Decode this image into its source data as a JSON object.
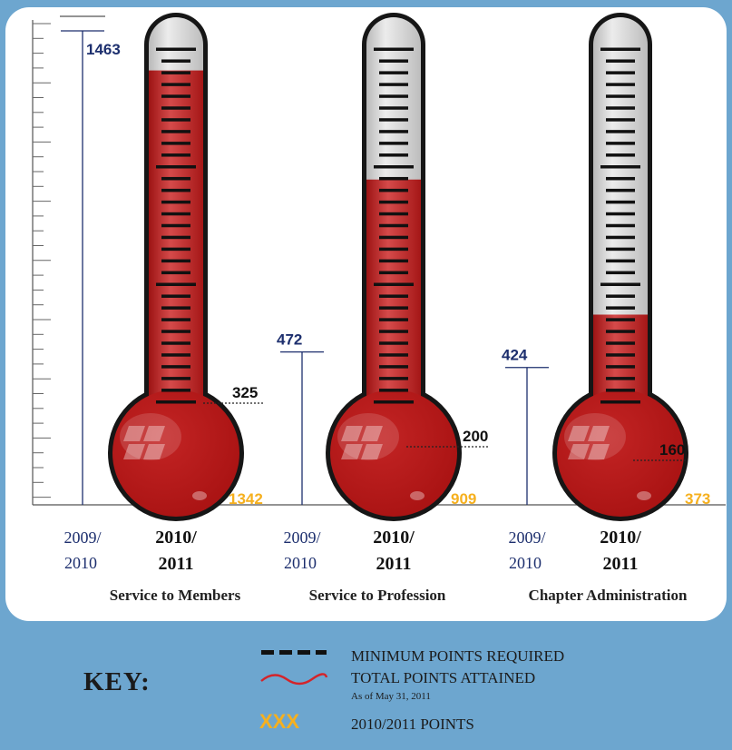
{
  "chart_data": {
    "type": "bar",
    "categories": [
      "Service to Members",
      "Service to Profession",
      "Chapter Administration"
    ],
    "series": [
      {
        "period": "2009/2010",
        "values": [
          1463,
          472,
          424
        ],
        "color": "#1d2f6e"
      },
      {
        "period": "2010/2011",
        "values": [
          1342,
          909,
          373
        ],
        "color": "#f6b01e"
      }
    ],
    "minimum_required": [
      325,
      200,
      160
    ],
    "year_labels": {
      "previous": [
        "2009/",
        "2010"
      ],
      "current": [
        "2010/",
        "2011"
      ]
    },
    "colors": {
      "background": "#6da6cf",
      "tube_fill": "#b5161b",
      "tube_empty": "#d3d3d3",
      "previous_year": "#1d2f6e",
      "current_year": "#f6b01e"
    }
  },
  "legend": {
    "title": "KEY:",
    "items": [
      {
        "symbol": "dashes",
        "label": "MINIMUM POINTS REQUIRED"
      },
      {
        "symbol": "wave",
        "label": "TOTAL POINTS ATTAINED",
        "note": "As of May 31, 2011"
      },
      {
        "symbol": "XXX",
        "label": "2010/2011 POINTS"
      }
    ]
  }
}
